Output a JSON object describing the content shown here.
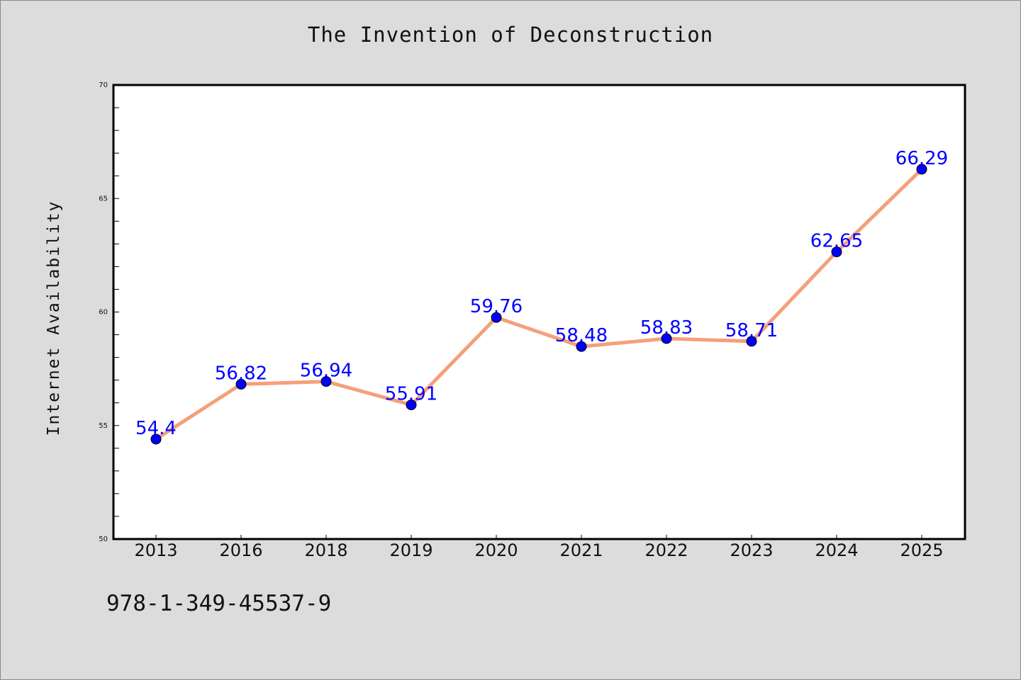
{
  "chart": {
    "title": "The Invention of Deconstruction",
    "ylabel": "Internet Availability",
    "footer_code": "978-1-349-45537-9"
  },
  "colors": {
    "background": "#dcdcdc",
    "plot_background": "#ffffff",
    "line": "#f4a07a",
    "marker": "#0000ff",
    "data_label": "#0000ff"
  },
  "chart_data": {
    "type": "line",
    "title": "The Invention of Deconstruction",
    "xlabel": "",
    "ylabel": "Internet Availability",
    "categories": [
      "2013",
      "2016",
      "2018",
      "2019",
      "2020",
      "2021",
      "2022",
      "2023",
      "2024",
      "2025"
    ],
    "series": [
      {
        "values": [
          54.4,
          56.82,
          56.94,
          55.91,
          59.76,
          58.48,
          58.83,
          58.71,
          62.65,
          66.29
        ],
        "data_labels": [
          "54.4",
          "56.82",
          "56.94",
          "55.91",
          "59.76",
          "58.48",
          "58.83",
          "58.71",
          "62.65",
          "66.29"
        ]
      }
    ],
    "ylim": [
      50,
      70
    ],
    "yticks": [
      "50",
      "55",
      "60",
      "65",
      "70"
    ],
    "grid": false,
    "legend": "none"
  }
}
